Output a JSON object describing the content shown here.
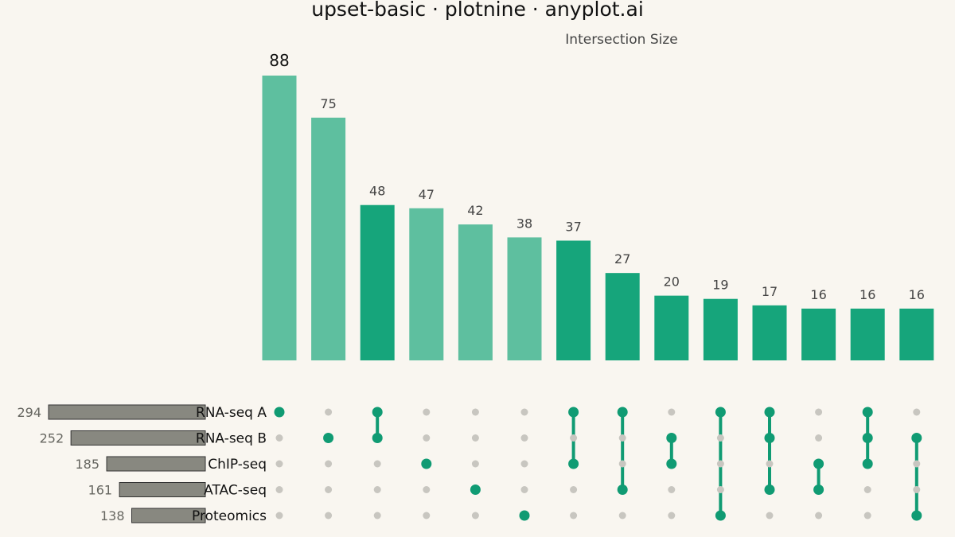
{
  "title": "upset-basic · plotnine · anyplot.ai",
  "colors": {
    "background": "#f9f6f0",
    "bar_single": "#5ebf9f",
    "bar_multi": "#16a57b",
    "dot_active": "#109b73",
    "dot_inactive": "#c8c6c0",
    "set_bar_fill": "#888880",
    "set_bar_stroke": "#333333",
    "text_dark": "#111111",
    "text_muted": "#444444"
  },
  "chart_data": {
    "type": "bar",
    "title": "upset-basic · plotnine · anyplot.ai",
    "ylabel": "Intersection Size",
    "ylim": [
      0,
      95
    ],
    "grid": false,
    "sets": [
      "RNA-seq A",
      "RNA-seq B",
      "ChIP-seq",
      "ATAC-seq",
      "Proteomics"
    ],
    "set_sizes": [
      294,
      252,
      185,
      161,
      138
    ],
    "intersections": [
      {
        "members": [
          "RNA-seq A"
        ],
        "size": 88
      },
      {
        "members": [
          "RNA-seq B"
        ],
        "size": 75
      },
      {
        "members": [
          "RNA-seq A",
          "RNA-seq B"
        ],
        "size": 48
      },
      {
        "members": [
          "ChIP-seq"
        ],
        "size": 47
      },
      {
        "members": [
          "ATAC-seq"
        ],
        "size": 42
      },
      {
        "members": [
          "Proteomics"
        ],
        "size": 38
      },
      {
        "members": [
          "RNA-seq A",
          "ChIP-seq"
        ],
        "size": 37
      },
      {
        "members": [
          "RNA-seq A",
          "ATAC-seq"
        ],
        "size": 27
      },
      {
        "members": [
          "RNA-seq B",
          "ChIP-seq"
        ],
        "size": 20
      },
      {
        "members": [
          "RNA-seq A",
          "Proteomics"
        ],
        "size": 19
      },
      {
        "members": [
          "RNA-seq A",
          "RNA-seq B",
          "ATAC-seq"
        ],
        "size": 17
      },
      {
        "members": [
          "ChIP-seq",
          "ATAC-seq"
        ],
        "size": 16
      },
      {
        "members": [
          "RNA-seq A",
          "RNA-seq B",
          "ChIP-seq"
        ],
        "size": 16
      },
      {
        "members": [
          "RNA-seq B",
          "Proteomics"
        ],
        "size": 16
      }
    ]
  }
}
